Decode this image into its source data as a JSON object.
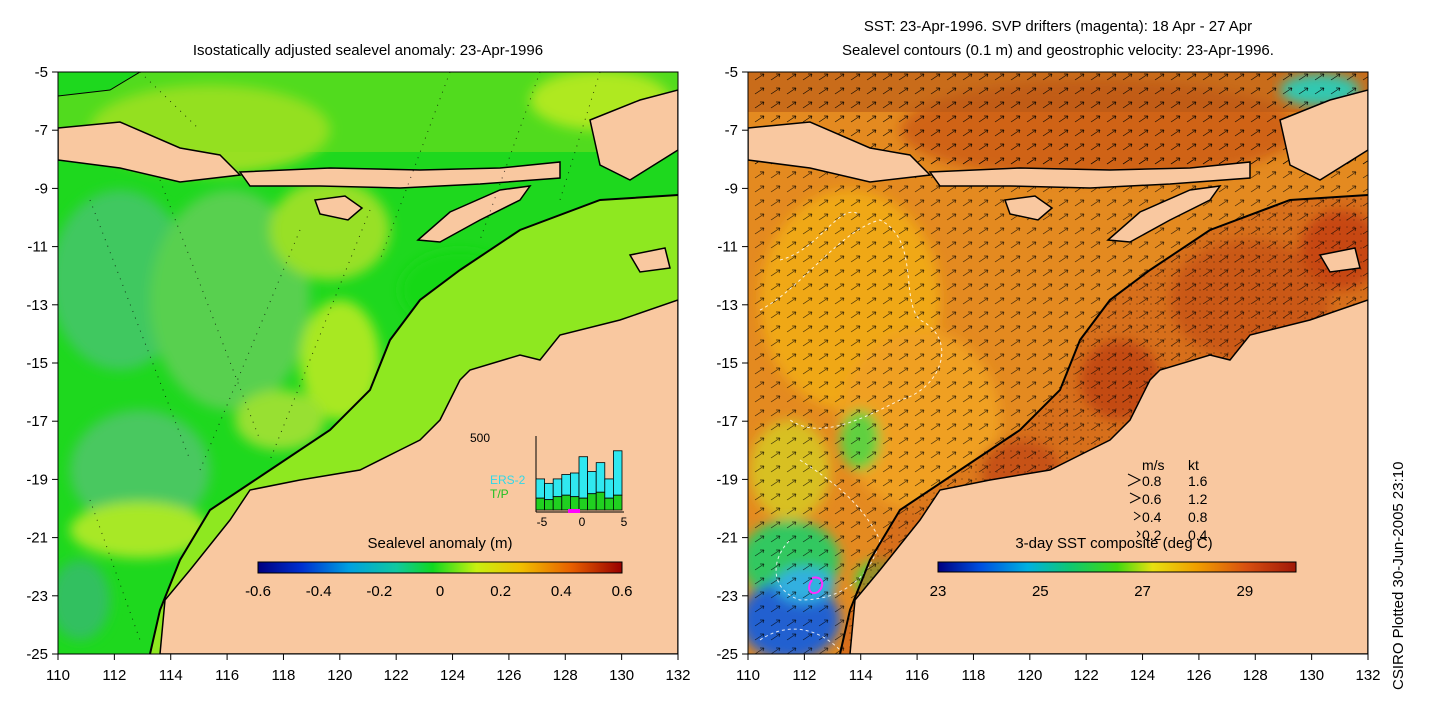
{
  "left_panel": {
    "title": "Isostatically adjusted sealevel anomaly: 23-Apr-1996",
    "y_ticks": [
      "-5",
      "-7",
      "-9",
      "-11",
      "-13",
      "-15",
      "-17",
      "-19",
      "-21",
      "-23",
      "-25"
    ],
    "x_ticks": [
      "110",
      "112",
      "114",
      "116",
      "118",
      "120",
      "122",
      "124",
      "126",
      "128",
      "130",
      "132"
    ],
    "colorbar_title": "Sealevel anomaly (m)",
    "colorbar_ticks": [
      "-0.6",
      "-0.4",
      "-0.2",
      "0",
      "0.2",
      "0.4",
      "0.6"
    ],
    "inset": {
      "y_max_label": "500",
      "series1": "ERS-2",
      "series2": "T/P",
      "x_ticks": [
        "-5",
        "0",
        "5"
      ],
      "ers2_counts": [
        130,
        110,
        120,
        140,
        160,
        280,
        150,
        200,
        130,
        300
      ],
      "tp_counts": [
        80,
        70,
        90,
        100,
        90,
        80,
        110,
        120,
        80,
        100
      ]
    }
  },
  "right_panel": {
    "title_line1": "SST: 23-Apr-1996. SVP drifters (magenta): 18 Apr - 27 Apr",
    "title_line2": "Sealevel contours (0.1 m) and geostrophic velocity: 23-Apr-1996.",
    "y_ticks": [
      "-5",
      "-7",
      "-9",
      "-11",
      "-13",
      "-15",
      "-17",
      "-19",
      "-21",
      "-23",
      "-25"
    ],
    "x_ticks": [
      "110",
      "112",
      "114",
      "116",
      "118",
      "120",
      "122",
      "124",
      "126",
      "128",
      "130",
      "132"
    ],
    "colorbar_title": "3-day SST composite (deg C)",
    "colorbar_ticks": [
      "23",
      "25",
      "27",
      "29"
    ],
    "velocity_legend": {
      "header_ms": "m/s",
      "header_kt": "kt",
      "rows": [
        {
          "ms": "0.8",
          "kt": "1.6"
        },
        {
          "ms": "0.6",
          "kt": "1.2"
        },
        {
          "ms": "0.4",
          "kt": "0.8"
        },
        {
          "ms": "0.2",
          "kt": "0.4"
        }
      ]
    }
  },
  "credit": "CSIRO Plotted 30-Jun-2005 23:10",
  "colors": {
    "land": "#f9c8a0",
    "sla_green": "#1ed81e",
    "sla_light": "#8ee820",
    "sst_orange": "#e07818",
    "sst_dark": "#c84a10"
  }
}
